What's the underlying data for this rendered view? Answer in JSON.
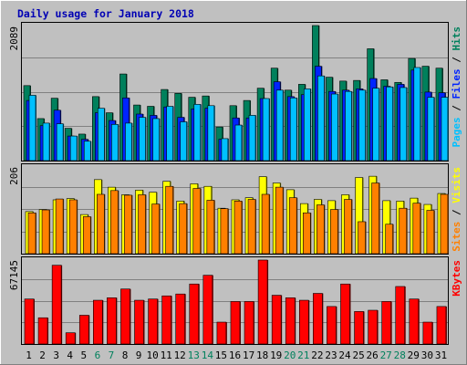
{
  "chart_data": {
    "type": "bar",
    "title": "Daily usage for January 2018",
    "x": [
      "1",
      "2",
      "3",
      "4",
      "5",
      "6",
      "7",
      "8",
      "9",
      "10",
      "11",
      "12",
      "13",
      "14",
      "15",
      "16",
      "17",
      "18",
      "19",
      "20",
      "21",
      "22",
      "23",
      "24",
      "25",
      "26",
      "27",
      "28",
      "29",
      "30",
      "31"
    ],
    "weekend_days": [
      "6",
      "7",
      "13",
      "14",
      "20",
      "21",
      "27",
      "28"
    ],
    "panels": {
      "hits_files_pages": {
        "max_label": "2089",
        "ylim": [
          0,
          2089
        ],
        "labels": [
          "Pages",
          "Files",
          "Hits"
        ],
        "series": [
          {
            "name": "Hits",
            "color": "#00805c",
            "values": [
              1160,
              650,
              965,
              500,
              410,
              990,
              740,
              1340,
              860,
              840,
              1100,
              1040,
              980,
              1000,
              520,
              850,
              930,
              1120,
              1430,
              1090,
              1180,
              2089,
              1290,
              1230,
              1240,
              1730,
              1250,
              1210,
              1580,
              1460,
              1430
            ]
          },
          {
            "name": "Files",
            "color": "#0024ff",
            "values": [
              930,
              540,
              780,
              380,
              330,
              740,
              620,
              970,
              720,
              700,
              830,
              670,
              800,
              810,
              330,
              660,
              660,
              960,
              1220,
              990,
              1020,
              1460,
              1070,
              1090,
              1110,
              1270,
              1150,
              1180,
              1400,
              1060,
              1050
            ]
          },
          {
            "name": "Pages",
            "color": "#00c0ff",
            "values": [
              1010,
              580,
              570,
              380,
              300,
              810,
              560,
              580,
              670,
              650,
              840,
              600,
              870,
              850,
              340,
              550,
              700,
              960,
              1090,
              970,
              1110,
              1310,
              1030,
              1070,
              1090,
              1120,
              1140,
              1130,
              1440,
              980,
              980
            ]
          }
        ]
      },
      "sites_visits": {
        "max_label": "206",
        "ylim": [
          0,
          206
        ],
        "labels": [
          "Sites",
          "Visits"
        ],
        "series": [
          {
            "name": "Visits",
            "color": "#ffff00",
            "values": [
              100,
              105,
              128,
              131,
              93,
              176,
              158,
              140,
              151,
              146,
              172,
              125,
              166,
              160,
              108,
              128,
              133,
              183,
              168,
              152,
              119,
              129,
              126,
              140,
              181,
              184,
              126,
              125,
              132,
              117,
              143
            ]
          },
          {
            "name": "Sites",
            "color": "#ff8000",
            "values": [
              97,
              104,
              130,
              128,
              88,
              141,
              150,
              139,
              140,
              118,
              160,
              119,
              155,
              127,
              107,
              125,
              129,
              141,
              158,
              133,
              97,
              116,
              105,
              129,
              76,
              168,
              70,
              108,
              120,
              103,
              141
            ]
          }
        ]
      },
      "kbytes": {
        "max_label": "67145",
        "ylim": [
          0,
          67145
        ],
        "labels": [
          "KBytes"
        ],
        "series": [
          {
            "name": "KBytes",
            "color": "#ff0000",
            "values": [
              36000,
              21000,
              63000,
              9000,
              23000,
              35000,
              37000,
              44000,
              35000,
              36000,
              38500,
              40000,
              48000,
              55000,
              17500,
              34000,
              34000,
              67145,
              39000,
              37000,
              35000,
              40500,
              30000,
              48000,
              26000,
              27000,
              34000,
              46000,
              36000,
              17500,
              30000
            ]
          }
        ]
      }
    },
    "grid": true
  }
}
